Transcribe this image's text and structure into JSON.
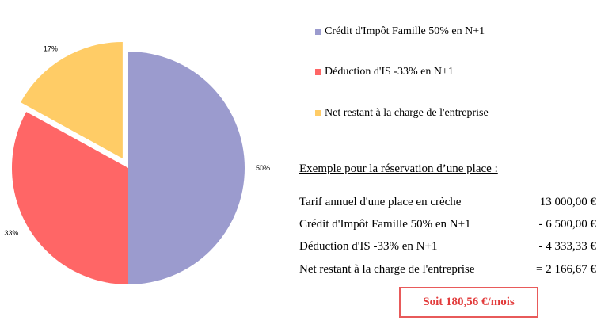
{
  "chart_data": {
    "type": "pie",
    "series": [
      {
        "name": "Crédit d'Impôt Famille 50% en N+1",
        "value": 50,
        "label": "50%",
        "color": "#9b9bce"
      },
      {
        "name": "Déduction d'IS -33% en N+1",
        "value": 33,
        "label": "33%",
        "color": "#ff6666"
      },
      {
        "name": "Net restant à la charge de l'entreprise",
        "value": 17,
        "label": "17%",
        "color": "#ffcc66",
        "exploded": true
      }
    ],
    "legend_position": "right"
  },
  "example": {
    "title": "Exemple pour la réservation d’une place :",
    "rows": [
      {
        "label": "Tarif annuel d'une place en crèche",
        "value": "13 000,00 €"
      },
      {
        "label": "Crédit d'Impôt Famille 50% en N+1",
        "value": "- 6 500,00 €"
      },
      {
        "label": "Déduction d'IS -33% en N+1",
        "value": "- 4 333,33 €"
      },
      {
        "label": "Net restant à la charge de l'entreprise",
        "value": "= 2 166,67 €"
      }
    ],
    "total": "Soit 180,56 €/mois"
  }
}
